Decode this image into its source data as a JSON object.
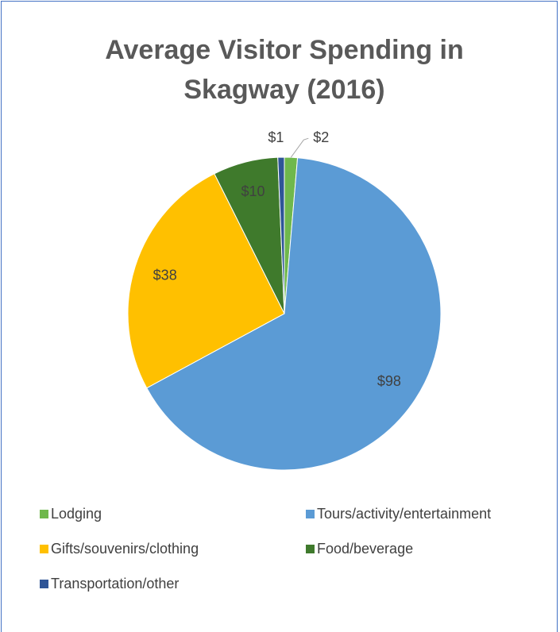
{
  "chart_data": {
    "type": "pie",
    "title": "Average Visitor Spending in Skagway (2016)",
    "categories": [
      "Lodging",
      "Tours/activity/entertainment",
      "Gifts/souvenirs/clothing",
      "Food/beverage",
      "Transportation/other"
    ],
    "values": [
      2,
      98,
      38,
      10,
      1
    ],
    "value_labels": [
      "$2",
      "$98",
      "$38",
      "$10",
      "$1"
    ],
    "colors": [
      "#6fb84c",
      "#5b9bd5",
      "#ffc000",
      "#3f7a2c",
      "#2f5597"
    ],
    "legend": "bottom"
  }
}
